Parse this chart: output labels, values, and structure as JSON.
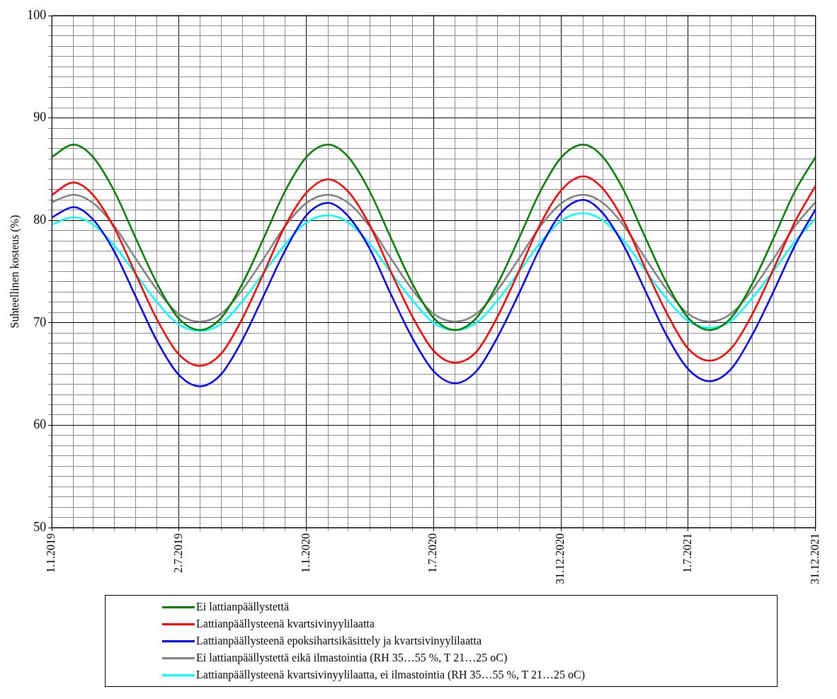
{
  "chart_data": {
    "type": "line",
    "ylabel": "Suhteellinen kosteus (%)",
    "x": [
      "2019-01-01",
      "2019-02-01",
      "2019-03-01",
      "2019-04-01",
      "2019-05-01",
      "2019-06-01",
      "2019-07-01",
      "2019-08-01",
      "2019-09-01",
      "2019-10-01",
      "2019-11-01",
      "2019-12-01",
      "2020-01-01",
      "2020-02-01",
      "2020-03-01",
      "2020-04-01",
      "2020-05-01",
      "2020-06-01",
      "2020-07-01",
      "2020-08-01",
      "2020-09-01",
      "2020-10-01",
      "2020-11-01",
      "2020-12-01",
      "2021-01-01",
      "2021-02-01",
      "2021-03-01",
      "2021-04-01",
      "2021-05-01",
      "2021-06-01",
      "2021-07-01",
      "2021-08-01",
      "2021-09-01",
      "2021-10-01",
      "2021-11-01",
      "2021-12-01",
      "2021-12-31"
    ],
    "series": [
      {
        "name": "Ei lattianpäällystettä",
        "color": "#008000",
        "values": [
          86.2,
          87.4,
          86.2,
          82.8,
          78.3,
          73.8,
          70.5,
          69.3,
          70.5,
          73.8,
          78.3,
          82.8,
          86.2,
          87.4,
          86.2,
          82.8,
          78.3,
          73.8,
          70.5,
          69.3,
          70.5,
          73.8,
          78.3,
          82.8,
          86.2,
          87.4,
          86.2,
          82.8,
          78.3,
          73.8,
          70.5,
          69.3,
          70.5,
          73.8,
          78.3,
          82.8,
          86.2
        ]
      },
      {
        "name": "Lattianpäällysteenä kvartsivinyylilaatta",
        "color": "#ff0000",
        "values": [
          82.5,
          83.7,
          82.5,
          79.2,
          74.8,
          70.3,
          67.0,
          65.8,
          67.0,
          70.4,
          74.9,
          79.4,
          82.7,
          84.0,
          82.8,
          79.5,
          75.0,
          70.6,
          67.3,
          66.1,
          67.2,
          70.6,
          75.1,
          79.6,
          83.0,
          84.3,
          83.1,
          79.8,
          75.3,
          70.9,
          67.5,
          66.3,
          67.5,
          70.8,
          75.3,
          79.8,
          83.4
        ]
      },
      {
        "name": "Lattianpäällysteenä epoksihartsikäsittely ja kvartsivinyylilaatta",
        "color": "#0000ff",
        "values": [
          80.3,
          81.3,
          80.1,
          76.9,
          72.6,
          68.2,
          65.0,
          63.8,
          65.0,
          68.3,
          72.7,
          77.0,
          80.5,
          81.7,
          80.4,
          77.2,
          72.8,
          68.5,
          65.3,
          64.1,
          65.3,
          68.6,
          72.9,
          77.3,
          80.8,
          82.0,
          80.7,
          77.4,
          73.1,
          68.7,
          65.5,
          64.3,
          65.5,
          68.8,
          73.1,
          77.5,
          81.1
        ]
      },
      {
        "name": "Ei lattianpäällystettä eikä ilmastointia (RH 35…55 %, T 21…25 oC)",
        "color": "#808080",
        "values": [
          81.8,
          82.5,
          81.7,
          79.4,
          76.3,
          73.2,
          70.9,
          70.1,
          70.9,
          73.2,
          76.3,
          79.4,
          81.7,
          82.5,
          81.7,
          79.4,
          76.3,
          73.2,
          70.9,
          70.1,
          70.9,
          73.2,
          76.3,
          79.4,
          81.7,
          82.5,
          81.7,
          79.4,
          76.3,
          73.2,
          70.9,
          70.1,
          70.9,
          73.2,
          76.3,
          79.4,
          81.8
        ]
      },
      {
        "name": "Lattianpäällysteenä kvartsivinyylilaatta, ei ilmastointia (RH 35…55 %, T 21…25 oC)",
        "color": "#00ffff",
        "values": [
          79.6,
          80.3,
          79.6,
          77.5,
          74.8,
          72.0,
          69.9,
          69.2,
          69.9,
          72.1,
          74.9,
          77.6,
          79.8,
          80.5,
          79.8,
          77.7,
          74.9,
          72.2,
          70.0,
          69.3,
          70.0,
          72.2,
          75.0,
          77.8,
          80.0,
          80.7,
          80.0,
          77.9,
          75.1,
          72.3,
          70.2,
          69.5,
          70.2,
          72.4,
          75.1,
          77.9,
          80.2
        ]
      }
    ],
    "xlim": [
      "2019-01-01",
      "2021-12-31"
    ],
    "xticks": [
      {
        "value": "2019-01-01",
        "label": "1.1.2019"
      },
      {
        "value": "2019-02-01",
        "label": null
      },
      {
        "value": "2019-03-01",
        "label": null
      },
      {
        "value": "2019-04-01",
        "label": null
      },
      {
        "value": "2019-05-01",
        "label": null
      },
      {
        "value": "2019-06-01",
        "label": null
      },
      {
        "value": "2019-07-02",
        "label": "2.7.2019"
      },
      {
        "value": "2019-08-01",
        "label": null
      },
      {
        "value": "2019-09-01",
        "label": null
      },
      {
        "value": "2019-10-01",
        "label": null
      },
      {
        "value": "2019-11-01",
        "label": null
      },
      {
        "value": "2019-12-01",
        "label": null
      },
      {
        "value": "2020-01-01",
        "label": "1.1.2020"
      },
      {
        "value": "2020-02-01",
        "label": null
      },
      {
        "value": "2020-03-01",
        "label": null
      },
      {
        "value": "2020-04-01",
        "label": null
      },
      {
        "value": "2020-05-01",
        "label": null
      },
      {
        "value": "2020-06-01",
        "label": null
      },
      {
        "value": "2020-07-01",
        "label": "1.7.2020"
      },
      {
        "value": "2020-08-01",
        "label": null
      },
      {
        "value": "2020-09-01",
        "label": null
      },
      {
        "value": "2020-10-01",
        "label": null
      },
      {
        "value": "2020-11-01",
        "label": null
      },
      {
        "value": "2020-12-01",
        "label": null
      },
      {
        "value": "2020-12-31",
        "label": "31.12.2020"
      },
      {
        "value": "2021-02-01",
        "label": null
      },
      {
        "value": "2021-03-01",
        "label": null
      },
      {
        "value": "2021-04-01",
        "label": null
      },
      {
        "value": "2021-05-01",
        "label": null
      },
      {
        "value": "2021-06-01",
        "label": null
      },
      {
        "value": "2021-07-01",
        "label": "1.7.2021"
      },
      {
        "value": "2021-08-01",
        "label": null
      },
      {
        "value": "2021-09-01",
        "label": null
      },
      {
        "value": "2021-10-01",
        "label": null
      },
      {
        "value": "2021-11-01",
        "label": null
      },
      {
        "value": "2021-12-01",
        "label": null
      },
      {
        "value": "2021-12-31",
        "label": "31.12.2021"
      }
    ],
    "ylim": [
      50,
      100
    ],
    "yticks": [
      50,
      {
        "value": 51,
        "label": null
      },
      {
        "value": 52,
        "label": null
      },
      {
        "value": 53,
        "label": null
      },
      {
        "value": 54,
        "label": null
      },
      {
        "value": 55,
        "label": null
      },
      {
        "value": 56,
        "label": null
      },
      {
        "value": 57,
        "label": null
      },
      {
        "value": 58,
        "label": null
      },
      {
        "value": 59,
        "label": null
      },
      60,
      {
        "value": 61,
        "label": null
      },
      {
        "value": 62,
        "label": null
      },
      {
        "value": 63,
        "label": null
      },
      {
        "value": 64,
        "label": null
      },
      {
        "value": 65,
        "label": null
      },
      {
        "value": 66,
        "label": null
      },
      {
        "value": 67,
        "label": null
      },
      {
        "value": 68,
        "label": null
      },
      {
        "value": 69,
        "label": null
      },
      70,
      {
        "value": 71,
        "label": null
      },
      {
        "value": 72,
        "label": null
      },
      {
        "value": 73,
        "label": null
      },
      {
        "value": 74,
        "label": null
      },
      {
        "value": 75,
        "label": null
      },
      {
        "value": 76,
        "label": null
      },
      {
        "value": 77,
        "label": null
      },
      {
        "value": 78,
        "label": null
      },
      {
        "value": 79,
        "label": null
      },
      80,
      {
        "value": 81,
        "label": null
      },
      {
        "value": 82,
        "label": null
      },
      {
        "value": 83,
        "label": null
      },
      {
        "value": 84,
        "label": null
      },
      {
        "value": 85,
        "label": null
      },
      {
        "value": 86,
        "label": null
      },
      {
        "value": 87,
        "label": null
      },
      {
        "value": 88,
        "label": null
      },
      {
        "value": 89,
        "label": null
      },
      90,
      {
        "value": 91,
        "label": null
      },
      {
        "value": 92,
        "label": null
      },
      {
        "value": 93,
        "label": null
      },
      {
        "value": 94,
        "label": null
      },
      {
        "value": 95,
        "label": null
      },
      {
        "value": 96,
        "label": null
      },
      {
        "value": 97,
        "label": null
      },
      {
        "value": 98,
        "label": null
      },
      {
        "value": 99,
        "label": null
      },
      100
    ],
    "grid": true,
    "legend": "bottom",
    "marker": "none",
    "line_style": "solid"
  }
}
